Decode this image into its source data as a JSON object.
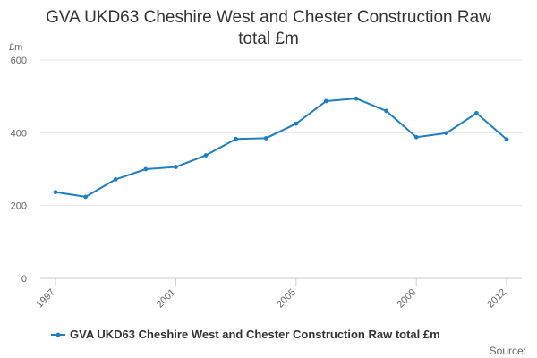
{
  "title_lines": [
    "GVA UKD63 Cheshire West and Chester Construction Raw",
    "total £m"
  ],
  "source_label": "Source:",
  "colors": {
    "series": "#1f7fbf",
    "grid": "#e6e6e6",
    "axis": "#cccccc",
    "text": "#666666"
  },
  "chart_data": {
    "type": "line",
    "title": "GVA UKD63 Cheshire West and Chester Construction Raw total £m",
    "ylabel": "£m",
    "xlabel": "",
    "ylim": [
      0,
      600
    ],
    "yticks": [
      0,
      200,
      400,
      600
    ],
    "xticks": [
      "1997",
      "2001",
      "2005",
      "2009",
      "2012"
    ],
    "x": [
      1997,
      1998,
      1999,
      2000,
      2001,
      2002,
      2003,
      2004,
      2005,
      2006,
      2007,
      2008,
      2009,
      2010,
      2011,
      2012
    ],
    "grid": true,
    "legend_position": "bottom",
    "series": [
      {
        "name": "GVA UKD63 Cheshire West and Chester Construction Raw total £m",
        "values": [
          237,
          224,
          272,
          300,
          306,
          338,
          383,
          385,
          425,
          487,
          494,
          460,
          388,
          399,
          454,
          382
        ]
      }
    ]
  }
}
